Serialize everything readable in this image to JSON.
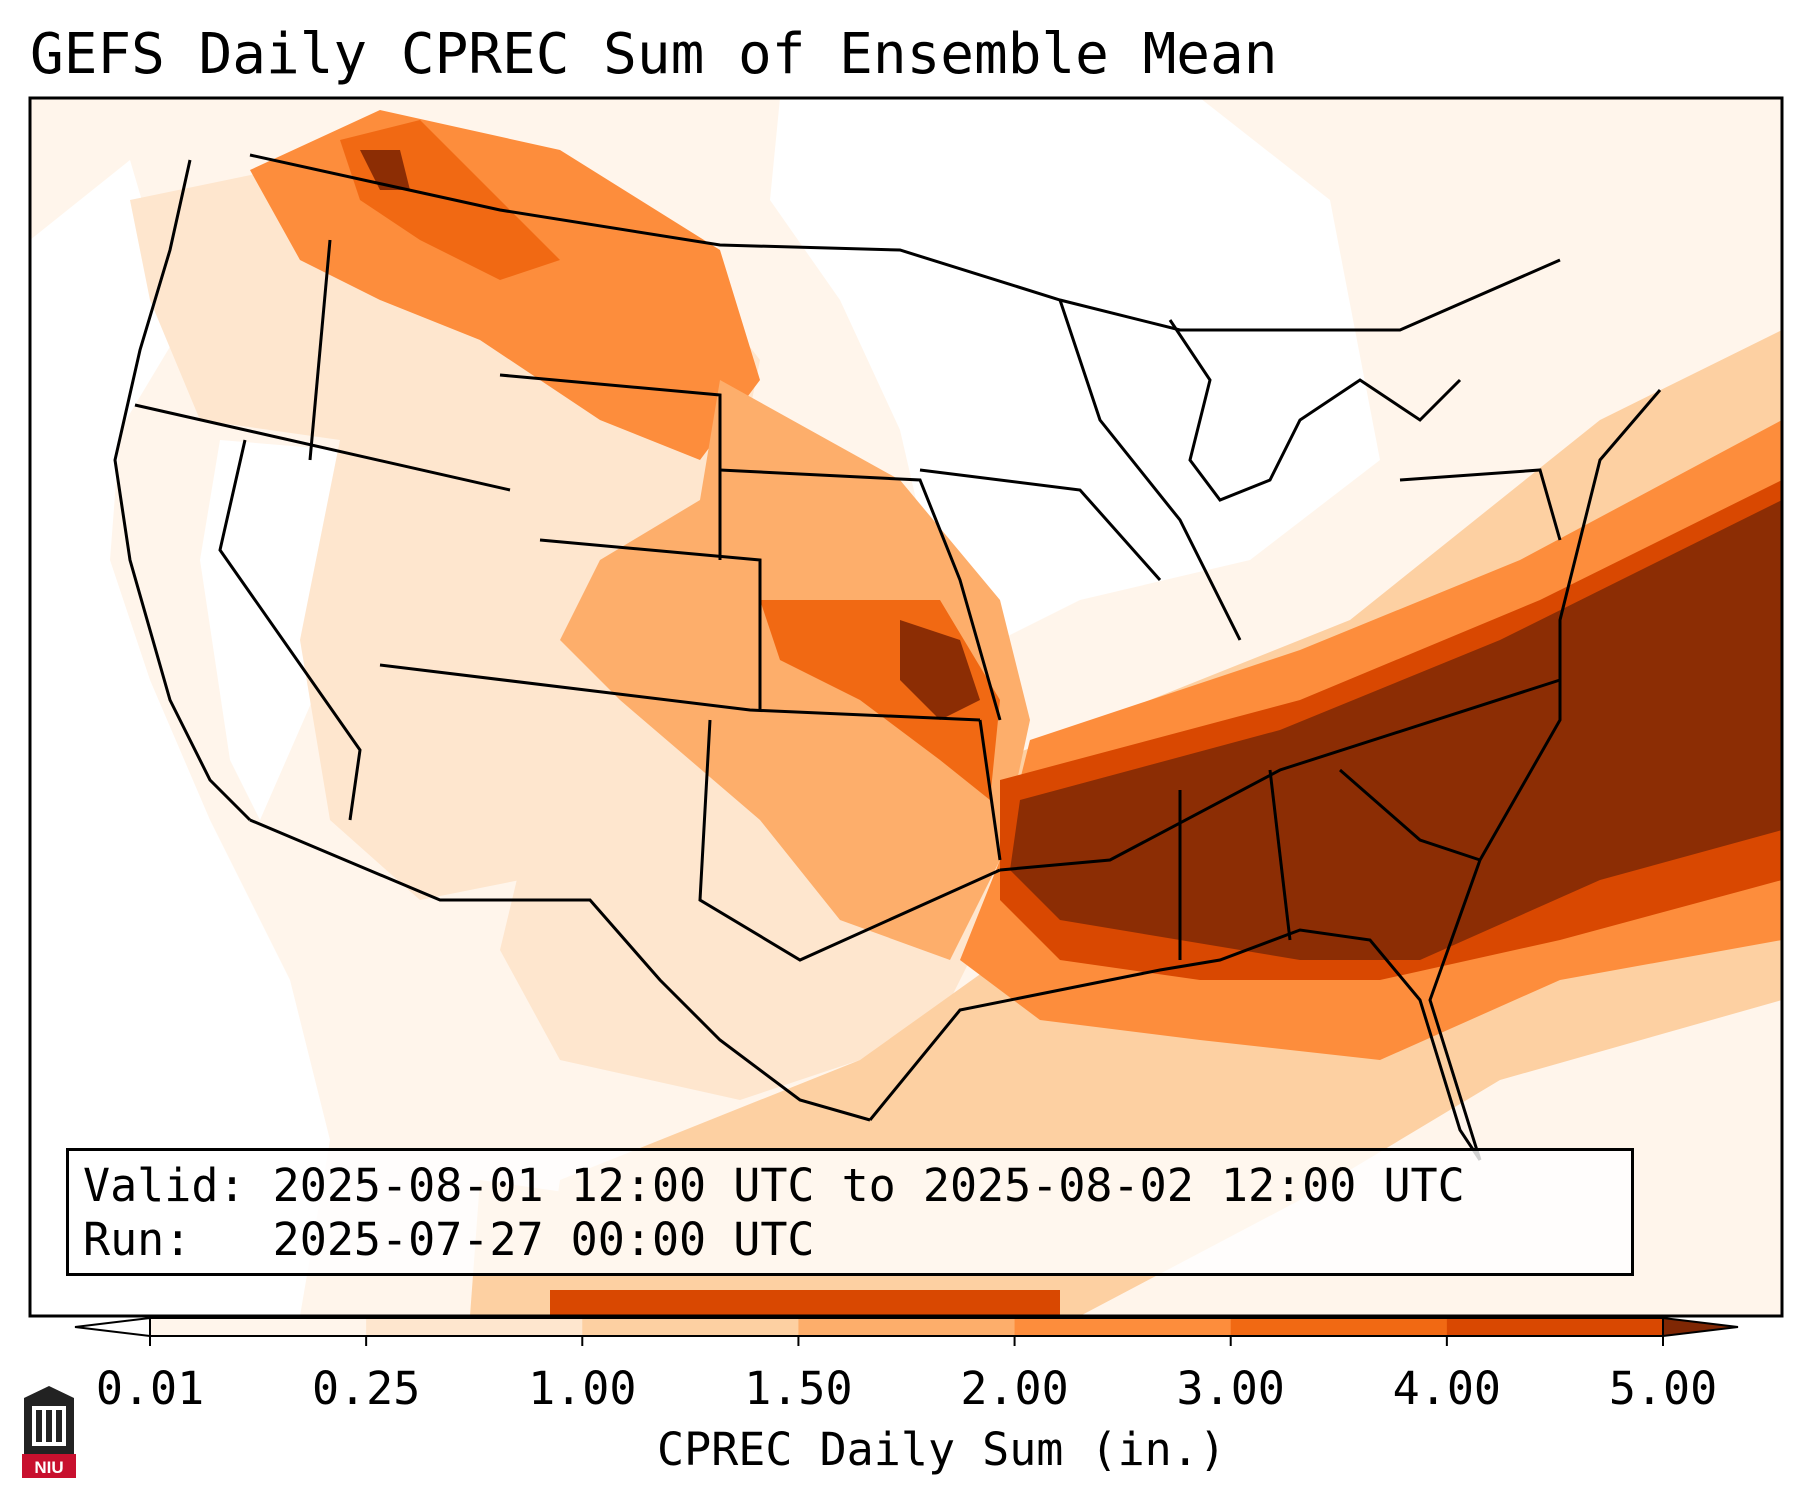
{
  "title": "GEFS Daily CPREC Sum of Ensemble Mean",
  "info": {
    "valid_label": "Valid:",
    "valid_value": "2025-08-01 12:00 UTC to 2025-08-02 12:00 UTC",
    "run_label": "Run:",
    "run_value": "2025-07-27 00:00 UTC"
  },
  "colorbar": {
    "title": "CPREC Daily Sum (in.)",
    "ticks": [
      "0.01",
      "0.25",
      "1.00",
      "1.50",
      "2.00",
      "3.00",
      "4.00",
      "5.00"
    ],
    "colors": [
      "#fff5eb",
      "#fee6ce",
      "#fdd0a2",
      "#fdae6b",
      "#fd8d3c",
      "#f16913",
      "#d94801",
      "#8c2d04"
    ],
    "under_color": "#ffffff",
    "over_color": "#7f2704"
  },
  "logo": {
    "text": "NIU",
    "color": "#c8102e"
  }
}
